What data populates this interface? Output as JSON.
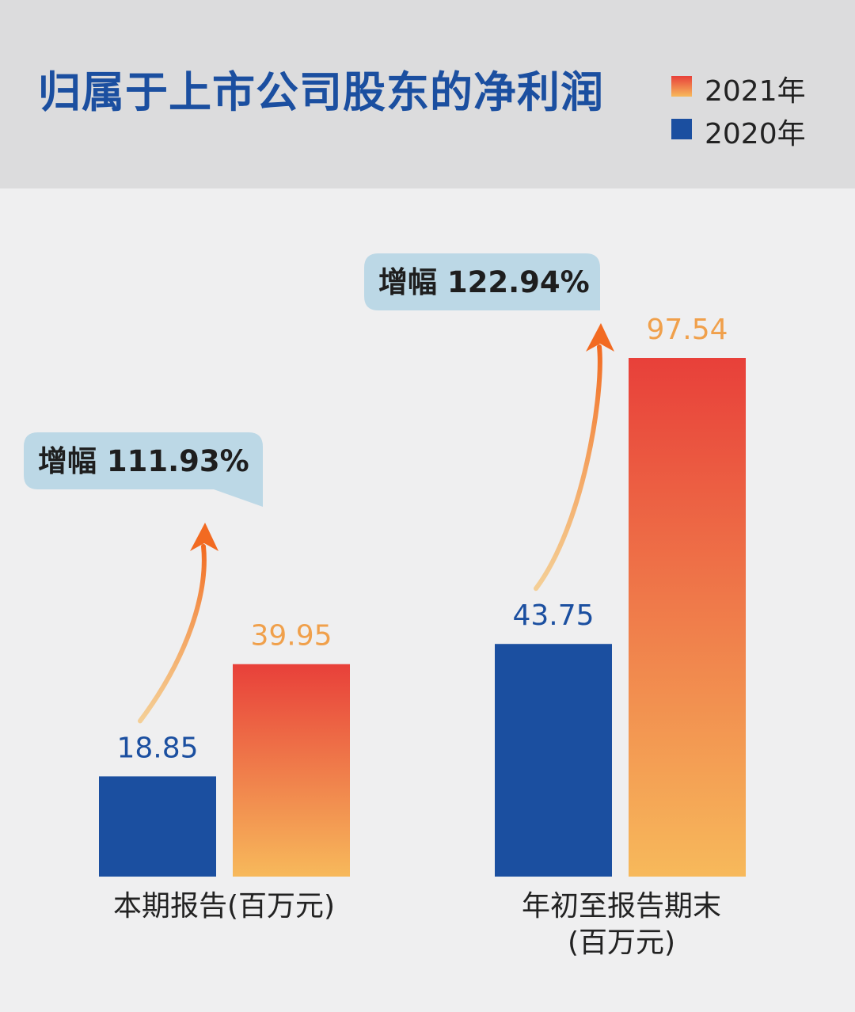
{
  "colors": {
    "header_bg": "#dcdcdd",
    "page_bg": "#efeff0",
    "title": "#1b4fa0",
    "bar_2020": "#1b4fa0",
    "bar_2021_top": "#e8403a",
    "bar_2021_bottom": "#f7b95b",
    "label_2020": "#1b4fa0",
    "label_2021": "#f0a04b",
    "callout_bg": "#bcd8e6",
    "arrow": "#f26a21"
  },
  "chart_data": {
    "type": "bar",
    "title": "归属于上市公司股东的净利润",
    "categories": [
      {
        "label": "本期报告(百万元)"
      },
      {
        "label": "年初至报告期末\n(百万元)"
      }
    ],
    "series": [
      {
        "name": "2020年",
        "values": [
          18.85,
          43.75
        ]
      },
      {
        "name": "2021年",
        "values": [
          39.95,
          97.54
        ]
      }
    ],
    "value_labels": [
      [
        "18.85",
        "43.75"
      ],
      [
        "39.95",
        "97.54"
      ]
    ],
    "annotations": [
      "增幅 111.93%",
      "增幅 122.94%"
    ],
    "legend_position": "top-right",
    "legend_order": [
      "2021年",
      "2020年"
    ],
    "grid": false,
    "ylim": [
      0,
      97.54
    ]
  }
}
